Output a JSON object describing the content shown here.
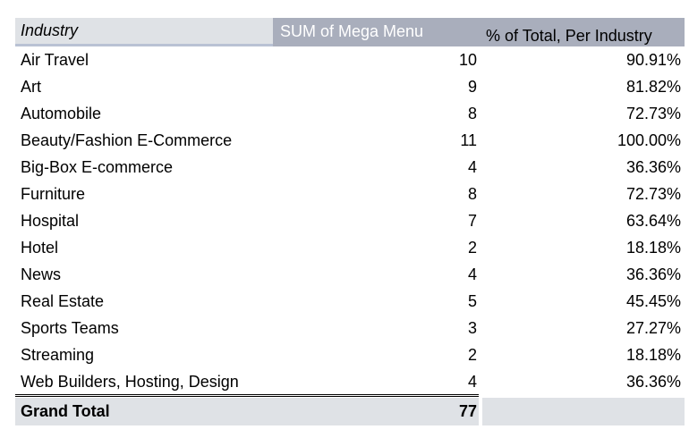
{
  "table": {
    "headers": {
      "industry": "Industry",
      "sum": "SUM of Mega Menu",
      "pct": "% of Total, Per Industry"
    },
    "rows": [
      {
        "industry": "Air Travel",
        "sum": "10",
        "pct": "90.91%"
      },
      {
        "industry": "Art",
        "sum": "9",
        "pct": "81.82%"
      },
      {
        "industry": "Automobile",
        "sum": "8",
        "pct": "72.73%"
      },
      {
        "industry": "Beauty/Fashion E-Commerce",
        "sum": "11",
        "pct": "100.00%"
      },
      {
        "industry": "Big-Box E-commerce",
        "sum": "4",
        "pct": "36.36%"
      },
      {
        "industry": "Furniture",
        "sum": "8",
        "pct": "72.73%"
      },
      {
        "industry": "Hospital",
        "sum": "7",
        "pct": "63.64%"
      },
      {
        "industry": "Hotel",
        "sum": "2",
        "pct": "18.18%"
      },
      {
        "industry": "News",
        "sum": "4",
        "pct": "36.36%"
      },
      {
        "industry": "Real Estate",
        "sum": "5",
        "pct": "45.45%"
      },
      {
        "industry": "Sports Teams",
        "sum": "3",
        "pct": "27.27%"
      },
      {
        "industry": "Streaming",
        "sum": "2",
        "pct": "18.18%"
      },
      {
        "industry": "Web Builders, Hosting, Design",
        "sum": "4",
        "pct": "36.36%"
      }
    ],
    "total": {
      "label": "Grand Total",
      "sum": "77"
    }
  }
}
